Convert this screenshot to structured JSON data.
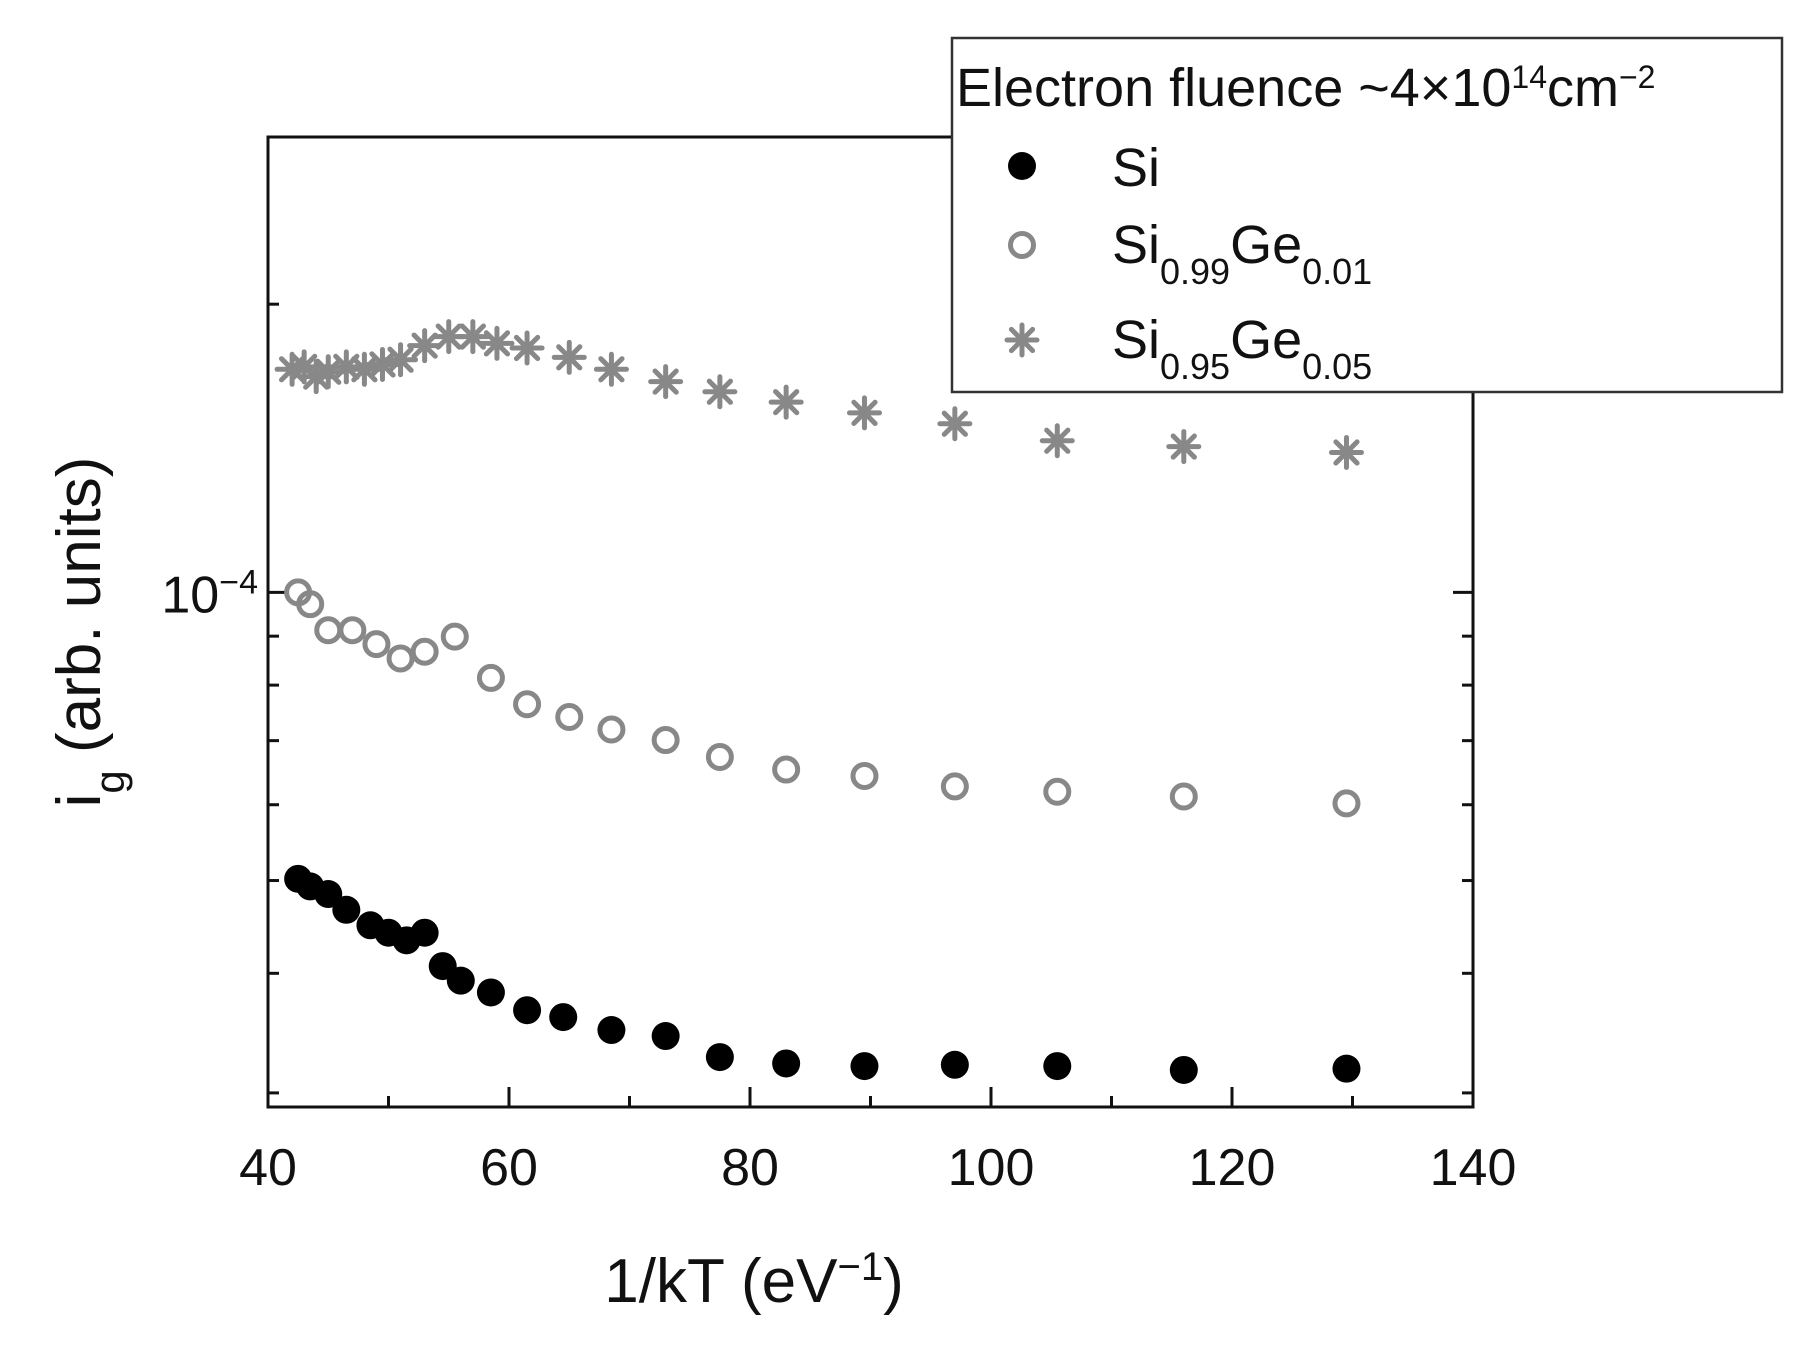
{
  "chart_data": {
    "type": "scatter",
    "title": "",
    "xlabel": "1/kT (eV",
    "xlabel_exp": "−1",
    "xlabel_close": ")",
    "ylabel_main": "i",
    "ylabel_sub": "g",
    "ylabel_rest": " (arb. units)",
    "xlim": [
      40,
      140
    ],
    "ylog": true,
    "ylim": [
      2.9e-05,
      0.000299
    ],
    "xticks": [
      "40",
      "60",
      "80",
      "100",
      "120",
      "140"
    ],
    "xtick_values": [
      40,
      60,
      80,
      100,
      120,
      140
    ],
    "ytick_label": {
      "base": "10",
      "exp": "−4",
      "value": 0.0001
    },
    "y_minor_ticks": [
      3e-05,
      4e-05,
      5e-05,
      6e-05,
      7e-05,
      8e-05,
      9e-05,
      0.0002
    ],
    "legend": {
      "title": "Electron fluence ~4×10",
      "title_exp": "14",
      "title_unit": "cm",
      "title_unit_exp": "−2",
      "placement": "top-right"
    },
    "series": [
      {
        "name": "Si",
        "name_parts": {
          "base": "Si",
          "sub1": "",
          "mid": "",
          "sub2": ""
        },
        "marker": "filled-circle",
        "color": "#000000",
        "x": [
          42.5,
          43.5,
          45,
          46.5,
          48.5,
          50,
          51.5,
          53,
          54.5,
          56,
          58.5,
          61.5,
          64.5,
          68.5,
          73,
          77.5,
          83,
          89.5,
          97,
          105.5,
          116,
          129.5
        ],
        "y": [
          5.02e-05,
          4.93e-05,
          4.84e-05,
          4.66e-05,
          4.49e-05,
          4.41e-05,
          4.33e-05,
          4.41e-05,
          4.07e-05,
          3.93e-05,
          3.82e-05,
          3.66e-05,
          3.6e-05,
          3.49e-05,
          3.44e-05,
          3.27e-05,
          3.22e-05,
          3.2e-05,
          3.21e-05,
          3.2e-05,
          3.17e-05,
          3.18e-05
        ]
      },
      {
        "name": "Si0.99Ge0.01",
        "name_parts": {
          "base": "Si",
          "sub1": "0.99",
          "mid": "Ge",
          "sub2": "0.01"
        },
        "marker": "open-circle",
        "color": "#888888",
        "x": [
          42.5,
          43.5,
          45,
          47,
          49,
          51,
          53,
          55.5,
          58.5,
          61.5,
          65,
          68.5,
          73,
          77.5,
          83,
          89.5,
          97,
          105.5,
          116,
          129.5
        ],
        "y": [
          0.0001,
          9.72e-05,
          9.13e-05,
          9.13e-05,
          8.83e-05,
          8.53e-05,
          8.67e-05,
          8.99e-05,
          8.14e-05,
          7.64e-05,
          7.41e-05,
          7.19e-05,
          7.01e-05,
          6.73e-05,
          6.53e-05,
          6.43e-05,
          6.27e-05,
          6.19e-05,
          6.12e-05,
          6.02e-05
        ]
      },
      {
        "name": "Si0.95Ge0.05",
        "name_parts": {
          "base": "Si",
          "sub1": "0.95",
          "mid": "Ge",
          "sub2": "0.05"
        },
        "marker": "asterisk",
        "color": "#888888",
        "x": [
          42,
          43,
          44,
          45,
          46.5,
          48,
          49.5,
          51,
          53,
          55,
          57,
          59,
          61.5,
          65,
          68.5,
          73,
          77.5,
          83,
          89.5,
          97,
          105.5,
          116,
          129.5
        ],
        "y": [
          0.000171,
          0.000172,
          0.000168,
          0.00017,
          0.000172,
          0.000171,
          0.000173,
          0.000175,
          0.000181,
          0.000185,
          0.000185,
          0.000182,
          0.00018,
          0.000176,
          0.000171,
          0.000166,
          0.000162,
          0.000158,
          0.000154,
          0.00015,
          0.000144,
          0.000142,
          0.00014
        ]
      }
    ]
  }
}
